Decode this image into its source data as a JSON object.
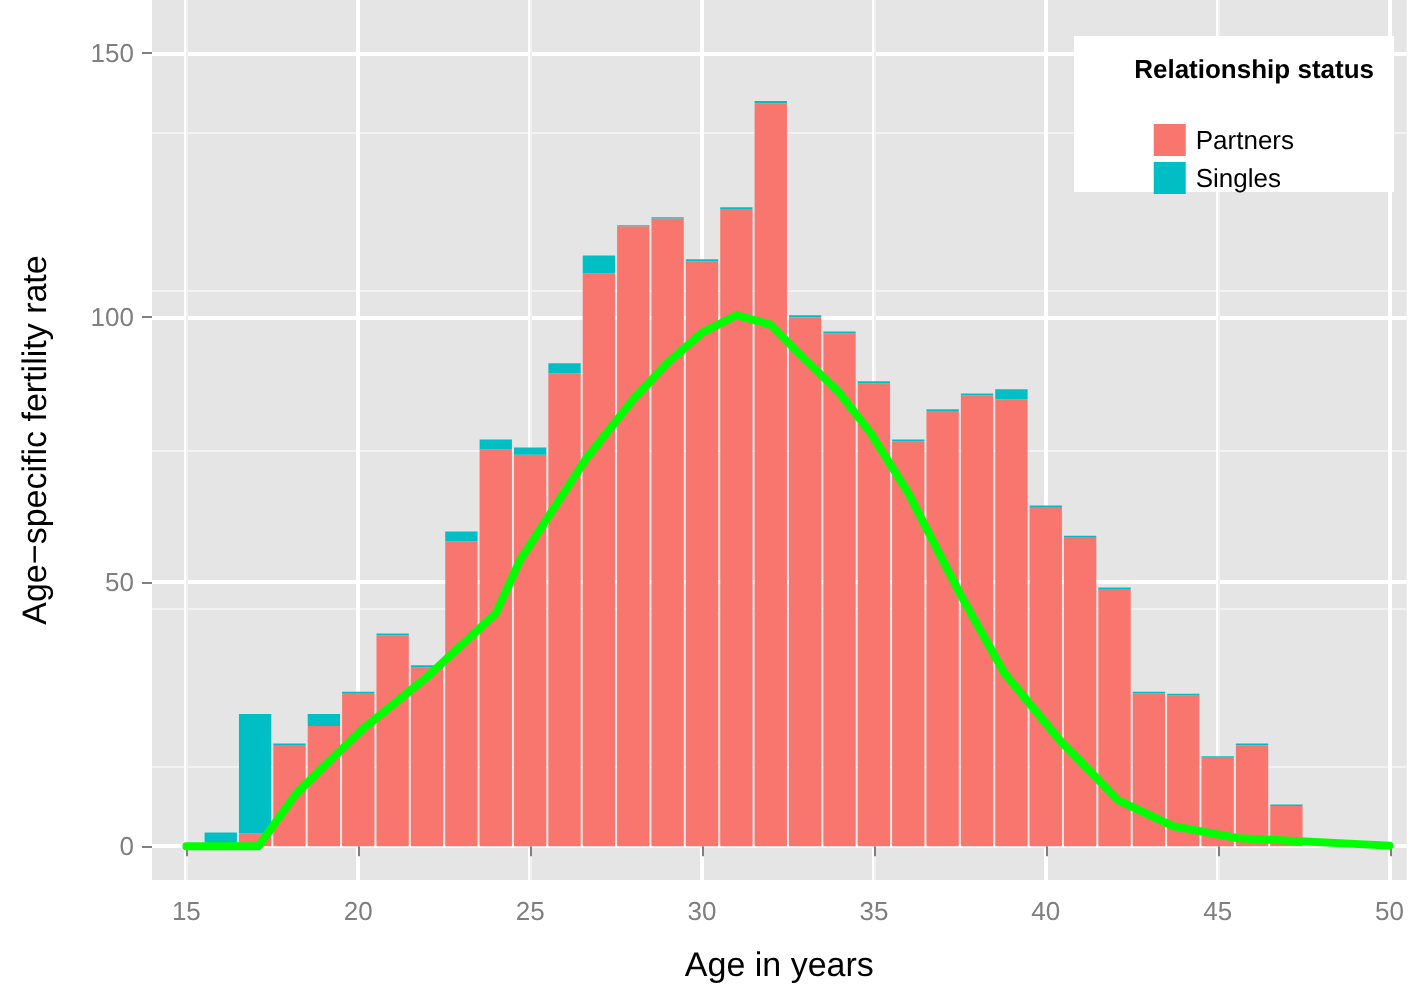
{
  "chart_data": {
    "type": "bar",
    "stacked": true,
    "xlabel": "Age in years",
    "ylabel": "Age−specific fertility rate",
    "legend_title": "Relationship status",
    "legend": "top right",
    "grid": true,
    "x": [
      15,
      16,
      17,
      18,
      19,
      20,
      21,
      22,
      23,
      24,
      25,
      26,
      27,
      28,
      29,
      30,
      31,
      32,
      33,
      34,
      35,
      36,
      37,
      38,
      39,
      40,
      41,
      42,
      43,
      44,
      45,
      46,
      47,
      48,
      49,
      50
    ],
    "xlim": [
      14,
      50.5
    ],
    "xticks": [
      15,
      20,
      25,
      30,
      35,
      40,
      45,
      50
    ],
    "ylim": [
      -6.4,
      160
    ],
    "yticks": [
      0,
      50,
      100,
      150
    ],
    "series": [
      {
        "name": "Partners",
        "color": "#f8766d",
        "values": [
          0,
          0,
          2.4,
          19,
          22.7,
          28.8,
          39.9,
          33.8,
          57.6,
          75,
          74,
          89.4,
          108.3,
          117.2,
          118.7,
          110.6,
          120.5,
          140.5,
          100,
          97,
          87.5,
          76.5,
          82.3,
          85.2,
          84.5,
          64,
          58.3,
          48.5,
          28.9,
          28.5,
          16.7,
          19.1,
          7.6,
          0,
          0,
          0
        ]
      },
      {
        "name": "Singles",
        "color": "#00bfc4",
        "values": [
          null,
          2.6,
          22.6,
          0.4,
          2.3,
          0.4,
          0.3,
          0.4,
          1.9,
          1.9,
          1.4,
          1.9,
          3.4,
          0.2,
          0.2,
          0.4,
          0.3,
          0.4,
          0.4,
          0.3,
          0.4,
          0.4,
          0.3,
          0.4,
          1.9,
          0.4,
          0.4,
          0.4,
          0.3,
          0.3,
          0.3,
          0.3,
          0.3,
          0,
          0,
          null
        ]
      },
      {
        "type": "line",
        "color": "#00ff00",
        "x": [
          15,
          17,
          17.1,
          18.2,
          20.1,
          22,
          24,
          24.7,
          25.7,
          26.6,
          28,
          29,
          30,
          31,
          32,
          32.8,
          34,
          34.9,
          36,
          37.5,
          38.8,
          40.4,
          42.1,
          43.7,
          45.6,
          50
        ],
        "values": [
          0,
          0,
          0,
          10,
          22,
          32,
          44,
          54,
          64,
          73,
          84.5,
          91.4,
          97.1,
          100.4,
          98.6,
          93.3,
          85.7,
          78.2,
          66.8,
          47.8,
          32.7,
          20.1,
          8.7,
          3.8,
          1.5,
          0.1
        ]
      }
    ]
  }
}
